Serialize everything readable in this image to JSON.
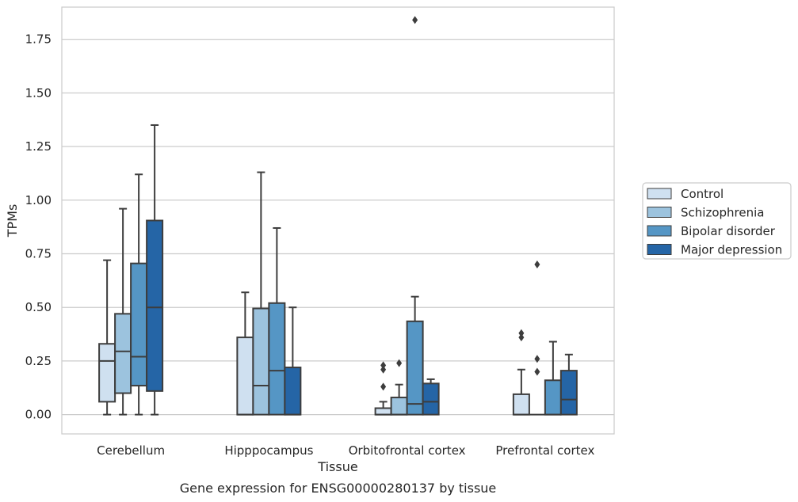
{
  "chart_data": {
    "type": "box",
    "title": "Gene expression for ENSG00000280137 by tissue",
    "xlabel": "Tissue",
    "ylabel": "TPMs",
    "ylim": [
      -0.09,
      1.9
    ],
    "yticks": [
      "0.00",
      "0.25",
      "0.50",
      "0.75",
      "1.00",
      "1.25",
      "1.50",
      "1.75"
    ],
    "grid": "horizontal",
    "legend_position": "right",
    "categories": [
      "Cerebellum",
      "Hipppocampus",
      "Orbitofrontal cortex",
      "Prefrontal cortex"
    ],
    "series": [
      {
        "name": "Control",
        "color": "#cfe0f0",
        "boxes": [
          {
            "min": 0.0,
            "q1": 0.06,
            "median": 0.25,
            "q3": 0.33,
            "max": 0.72,
            "outliers": []
          },
          {
            "min": 0.0,
            "q1": 0.0,
            "median": 0.0,
            "q3": 0.36,
            "max": 0.57,
            "outliers": []
          },
          {
            "min": 0.0,
            "q1": 0.0,
            "median": 0.0,
            "q3": 0.03,
            "max": 0.06,
            "outliers": [
              0.13,
              0.21,
              0.23
            ]
          },
          {
            "min": 0.0,
            "q1": 0.0,
            "median": 0.0,
            "q3": 0.095,
            "max": 0.21,
            "outliers": [
              0.36,
              0.38
            ]
          }
        ]
      },
      {
        "name": "Schizophrenia",
        "color": "#9cc3de",
        "boxes": [
          {
            "min": 0.0,
            "q1": 0.1,
            "median": 0.295,
            "q3": 0.47,
            "max": 0.96,
            "outliers": []
          },
          {
            "min": 0.0,
            "q1": 0.0,
            "median": 0.135,
            "q3": 0.495,
            "max": 1.13,
            "outliers": []
          },
          {
            "min": 0.0,
            "q1": 0.0,
            "median": 0.0,
            "q3": 0.08,
            "max": 0.14,
            "outliers": [
              0.24
            ]
          },
          {
            "min": 0.0,
            "q1": 0.0,
            "median": 0.0,
            "q3": 0.0,
            "max": 0.0,
            "outliers": [
              0.2,
              0.26,
              0.7
            ]
          }
        ]
      },
      {
        "name": "Bipolar disorder",
        "color": "#5596c5",
        "boxes": [
          {
            "min": 0.0,
            "q1": 0.135,
            "median": 0.27,
            "q3": 0.705,
            "max": 1.12,
            "outliers": []
          },
          {
            "min": 0.0,
            "q1": 0.0,
            "median": 0.205,
            "q3": 0.52,
            "max": 0.87,
            "outliers": []
          },
          {
            "min": 0.0,
            "q1": 0.0,
            "median": 0.05,
            "q3": 0.435,
            "max": 0.55,
            "outliers": [
              1.84
            ]
          },
          {
            "min": 0.0,
            "q1": 0.0,
            "median": 0.0,
            "q3": 0.16,
            "max": 0.34,
            "outliers": []
          }
        ]
      },
      {
        "name": "Major depression",
        "color": "#2565a6",
        "boxes": [
          {
            "min": 0.0,
            "q1": 0.11,
            "median": 0.5,
            "q3": 0.905,
            "max": 1.35,
            "outliers": []
          },
          {
            "min": 0.0,
            "q1": 0.0,
            "median": 0.0,
            "q3": 0.22,
            "max": 0.5,
            "outliers": []
          },
          {
            "min": 0.0,
            "q1": 0.0,
            "median": 0.06,
            "q3": 0.145,
            "max": 0.165,
            "outliers": []
          },
          {
            "min": 0.0,
            "q1": 0.0,
            "median": 0.07,
            "q3": 0.205,
            "max": 0.28,
            "outliers": []
          }
        ]
      }
    ]
  }
}
